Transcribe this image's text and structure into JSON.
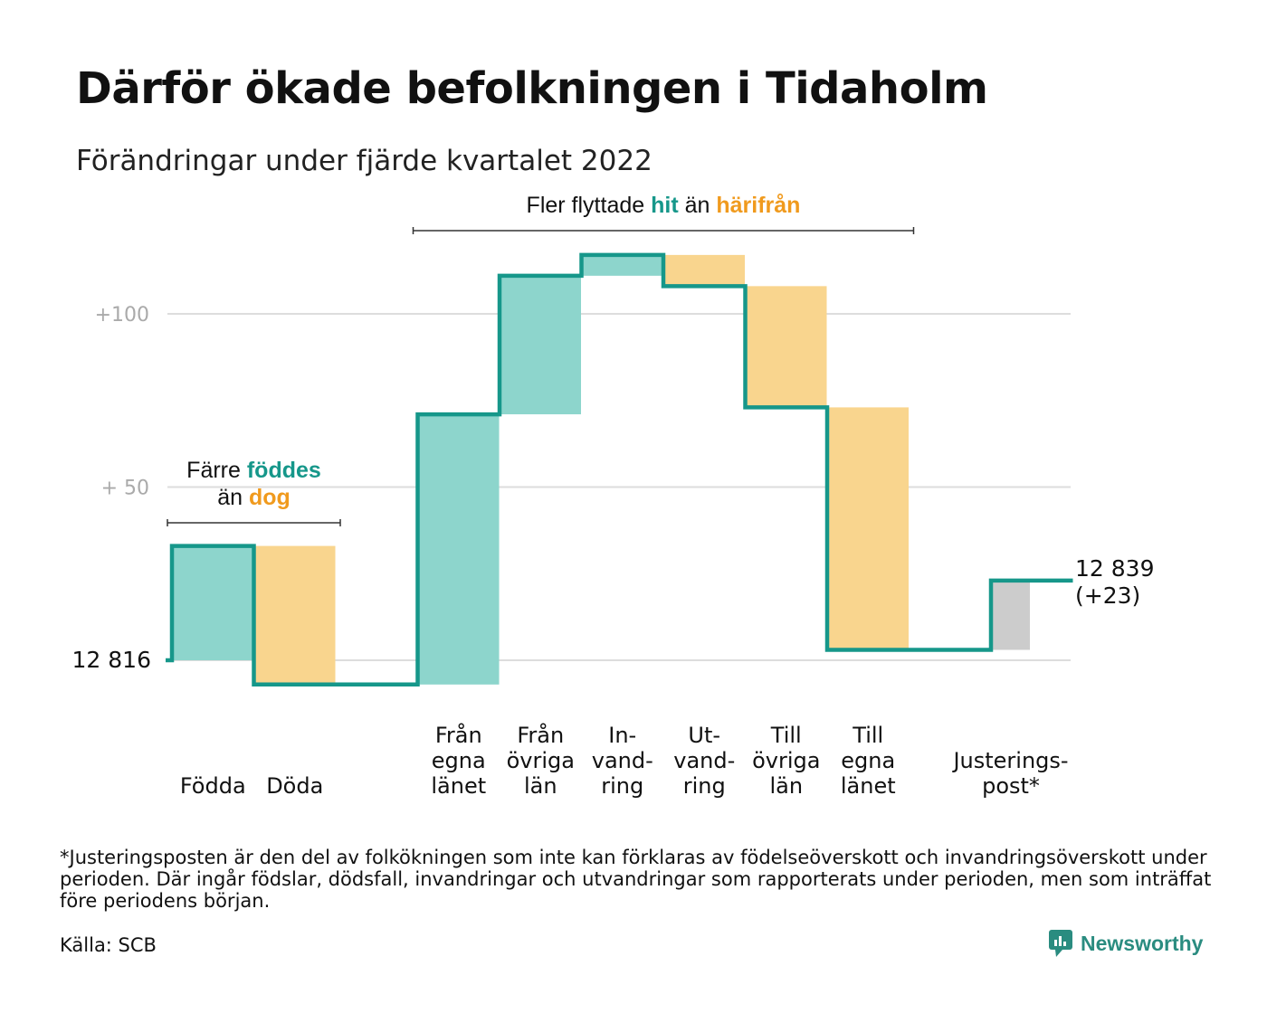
{
  "header": {
    "title": "Därför ökade befolkningen i Tidaholm",
    "subtitle": "Förändringar under fjärde kvartalet 2022"
  },
  "footer": {
    "footnote": "*Justeringsposten är den del av folkökningen som inte kan förklaras av födelseöverskott och invandringsöverskott under perioden. Där ingår födslar, dödsfall, invandringar och utvandringar som rapporterats under perioden, men som inträffat före periodens början.",
    "source": "Källa: SCB",
    "brand": "Newsworthy"
  },
  "colors": {
    "increase": "#8dd5cc",
    "decrease": "#f9d58e",
    "adjustment": "#cccccc",
    "line": "#16978a",
    "accent_teal": "#16978a",
    "accent_orange": "#f09a1d",
    "grid": "#dddddd"
  },
  "chart_data": {
    "type": "waterfall",
    "start_label": "12 816",
    "end_label_value": "12 839",
    "end_label_change": "(+23)",
    "start": 0,
    "end": 23,
    "y_ticks": [
      {
        "value": 0,
        "label": ""
      },
      {
        "value": 50,
        "label": "+ 50"
      },
      {
        "value": 100,
        "label": "+100"
      }
    ],
    "ylim": [
      -10,
      120
    ],
    "steps": [
      {
        "category": [
          "Födda"
        ],
        "value": 33,
        "kind": "increase"
      },
      {
        "category": [
          "Döda"
        ],
        "value": -40,
        "kind": "decrease"
      },
      {
        "category": [],
        "value": 0,
        "kind": "gap"
      },
      {
        "category": [
          "Från",
          "egna",
          "länet"
        ],
        "value": 78,
        "kind": "increase"
      },
      {
        "category": [
          "Från",
          "övriga",
          "län"
        ],
        "value": 40,
        "kind": "increase"
      },
      {
        "category": [
          "In-",
          "vand-",
          "ring"
        ],
        "value": 6,
        "kind": "increase"
      },
      {
        "category": [
          "Ut-",
          "vand-",
          "ring"
        ],
        "value": -9,
        "kind": "decrease"
      },
      {
        "category": [
          "Till",
          "övriga",
          "län"
        ],
        "value": -35,
        "kind": "decrease"
      },
      {
        "category": [
          "Till",
          "egna",
          "länet"
        ],
        "value": -70,
        "kind": "decrease"
      },
      {
        "category": [],
        "value": 0,
        "kind": "gap"
      },
      {
        "category": [
          "Justerings-",
          "post*"
        ],
        "value": 20,
        "kind": "adjustment"
      }
    ],
    "annotations": [
      {
        "id": "births",
        "parts": [
          {
            "text": "Färre ",
            "style": "plain"
          },
          {
            "text": "föddes",
            "style": "teal"
          },
          {
            "text": "\n",
            "style": "break"
          },
          {
            "text": "än ",
            "style": "plain"
          },
          {
            "text": "dog",
            "style": "orange"
          }
        ],
        "span": [
          0,
          1
        ]
      },
      {
        "id": "migration",
        "parts": [
          {
            "text": "Fler flyttade ",
            "style": "plain"
          },
          {
            "text": "hit",
            "style": "teal"
          },
          {
            "text": " än ",
            "style": "plain"
          },
          {
            "text": "härifrån",
            "style": "orange"
          }
        ],
        "span": [
          3,
          8
        ]
      }
    ]
  }
}
